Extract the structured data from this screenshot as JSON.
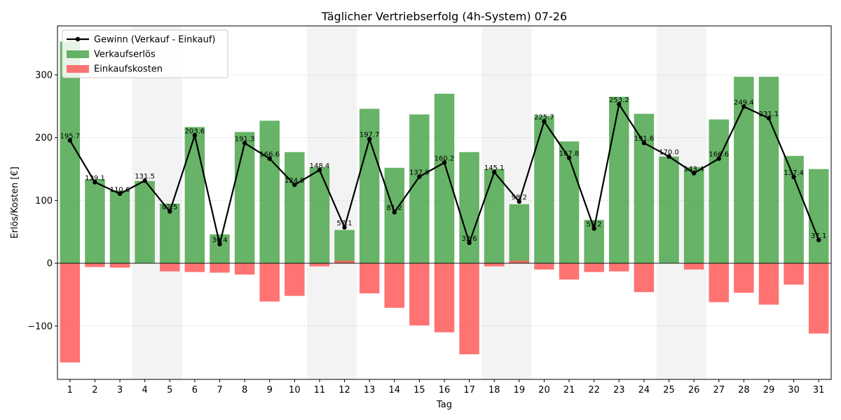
{
  "chart_data": {
    "type": "bar",
    "title": "Täglicher Vertriebserfolg (4h-System) 07-26",
    "xlabel": "Tag",
    "ylabel": "Erlös/Kosten [€]",
    "ylim": [
      -185,
      378
    ],
    "yticks": [
      -100,
      0,
      100,
      200,
      300
    ],
    "grid": "horizontal dotted",
    "legend_position": "top-left",
    "categories": [
      "1",
      "2",
      "3",
      "4",
      "5",
      "6",
      "7",
      "8",
      "9",
      "10",
      "11",
      "12",
      "13",
      "14",
      "15",
      "16",
      "17",
      "18",
      "19",
      "20",
      "21",
      "22",
      "23",
      "24",
      "25",
      "26",
      "27",
      "28",
      "29",
      "30",
      "31"
    ],
    "weekend_days": [
      "4",
      "5",
      "11",
      "12",
      "18",
      "19",
      "25",
      "26"
    ],
    "series": [
      {
        "name": "Verkaufserlös",
        "kind": "bar",
        "color": "#4ca64c",
        "values": [
          353,
          134,
          116,
          131,
          95,
          217,
          46,
          209,
          227,
          177,
          153,
          53,
          246,
          152,
          237,
          270,
          177,
          150,
          94,
          235,
          194,
          69,
          265,
          238,
          170,
          153,
          229,
          297,
          297,
          171,
          150
        ]
      },
      {
        "name": "Einkaufskosten",
        "kind": "bar",
        "color": "#ff5a5a",
        "values": [
          -158,
          -6,
          -7,
          0,
          -13,
          -14,
          -15,
          -18,
          -61,
          -52,
          -5,
          4,
          -48,
          -71,
          -99,
          -110,
          -145,
          -5,
          4,
          -10,
          -26,
          -14,
          -13,
          -46,
          0,
          -10,
          -62,
          -47,
          -66,
          -34,
          -112
        ]
      },
      {
        "name": "Gewinn (Verkauf - Einkauf)",
        "kind": "line",
        "color": "#000000",
        "values": [
          195.7,
          129.1,
          110.6,
          131.5,
          82.5,
          203.6,
          30.4,
          191.3,
          166.6,
          124.9,
          148.4,
          57.1,
          197.7,
          81.2,
          137.9,
          160.2,
          32.6,
          145.1,
          98.2,
          225.7,
          167.8,
          55.2,
          253.2,
          191.6,
          170.0,
          143.4,
          166.6,
          249.4,
          231.1,
          137.4,
          37.1
        ],
        "labels": [
          "195.7",
          "129.1",
          "110.6",
          "131.5",
          "82.5",
          "203.6",
          "30.4",
          "191.3",
          "166.6",
          "124.9",
          "148.4",
          "57.1",
          "197.7",
          "81.2",
          "137.9",
          "160.2",
          "32.6",
          "145.1",
          "98.2",
          "225.7",
          "167.8",
          "55.2",
          "253.2",
          "191.6",
          "170.0",
          "143.4",
          "166.6",
          "249.4",
          "231.1",
          "137.4",
          "37.1"
        ]
      }
    ]
  }
}
